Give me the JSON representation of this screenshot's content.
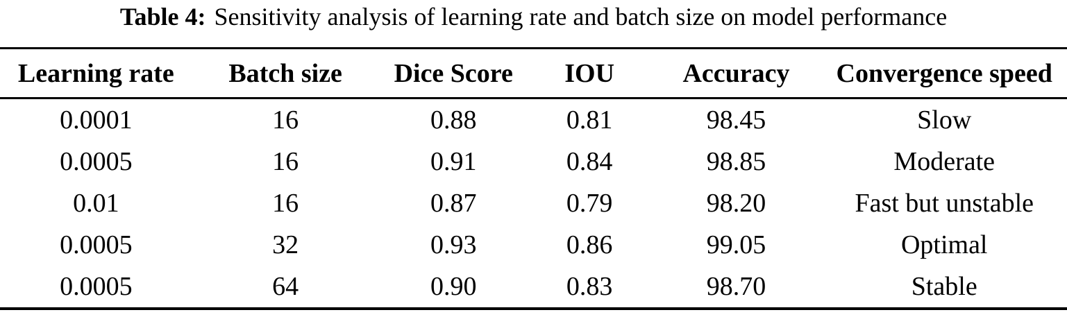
{
  "caption": {
    "label": "Table 4:",
    "text": "Sensitivity analysis of learning rate and batch size on model performance"
  },
  "chart_data": {
    "type": "table",
    "title": "Table 4: Sensitivity analysis of learning rate and batch size on model performance",
    "columns": [
      "Learning rate",
      "Batch size",
      "Dice Score",
      "IOU",
      "Accuracy",
      "Convergence speed"
    ],
    "rows": [
      [
        "0.0001",
        "16",
        "0.88",
        "0.81",
        "98.45",
        "Slow"
      ],
      [
        "0.0005",
        "16",
        "0.91",
        "0.84",
        "98.85",
        "Moderate"
      ],
      [
        "0.01",
        "16",
        "0.87",
        "0.79",
        "98.20",
        "Fast but unstable"
      ],
      [
        "0.0005",
        "32",
        "0.93",
        "0.86",
        "99.05",
        "Optimal"
      ],
      [
        "0.0005",
        "64",
        "0.90",
        "0.83",
        "98.70",
        "Stable"
      ]
    ]
  },
  "colors": {
    "text": "#000000",
    "background": "#ffffff",
    "rule": "#000000"
  }
}
